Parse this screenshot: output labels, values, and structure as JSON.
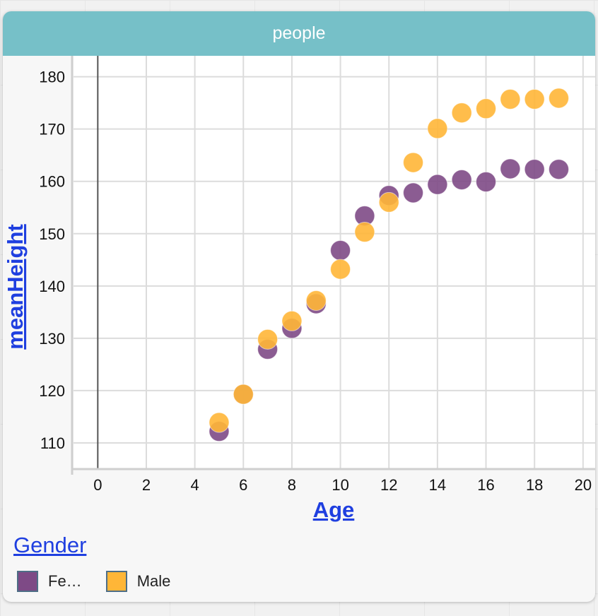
{
  "card": {
    "title": "people"
  },
  "legend": {
    "title": "Gender",
    "items": [
      {
        "label": "Fe…",
        "color": "#7e4a86"
      },
      {
        "label": "Male",
        "color": "#ffb637"
      }
    ]
  },
  "chart_data": {
    "type": "scatter",
    "title": "people",
    "xlabel": "Age",
    "ylabel": "meanHeight",
    "xlim": [
      -1,
      20.5
    ],
    "ylim": [
      105,
      184
    ],
    "xticks": [
      0,
      2,
      4,
      6,
      8,
      10,
      12,
      14,
      16,
      18,
      20
    ],
    "yticks": [
      110,
      120,
      130,
      140,
      150,
      160,
      170,
      180
    ],
    "grid": true,
    "legend_placement": "bottom",
    "series": [
      {
        "name": "Fe…",
        "color": "#7e4a86",
        "points": [
          [
            5,
            112.2
          ],
          [
            6,
            119.3
          ],
          [
            7,
            127.9
          ],
          [
            8,
            131.9
          ],
          [
            9,
            136.6
          ],
          [
            10,
            146.8
          ],
          [
            11,
            153.4
          ],
          [
            12,
            157.3
          ],
          [
            13,
            157.8
          ],
          [
            14,
            159.4
          ],
          [
            15,
            160.3
          ],
          [
            16,
            159.9
          ],
          [
            17,
            162.4
          ],
          [
            18,
            162.3
          ],
          [
            19,
            162.3
          ]
        ]
      },
      {
        "name": "Male",
        "color": "#ffb637",
        "points": [
          [
            5,
            113.9
          ],
          [
            6,
            119.3
          ],
          [
            7,
            129.8
          ],
          [
            8,
            133.3
          ],
          [
            9,
            137.2
          ],
          [
            10,
            143.2
          ],
          [
            11,
            150.3
          ],
          [
            12,
            156.0
          ],
          [
            13,
            163.6
          ],
          [
            14,
            170.1
          ],
          [
            15,
            173.1
          ],
          [
            16,
            173.9
          ],
          [
            17,
            175.7
          ],
          [
            18,
            175.7
          ],
          [
            19,
            175.9
          ]
        ]
      }
    ]
  }
}
